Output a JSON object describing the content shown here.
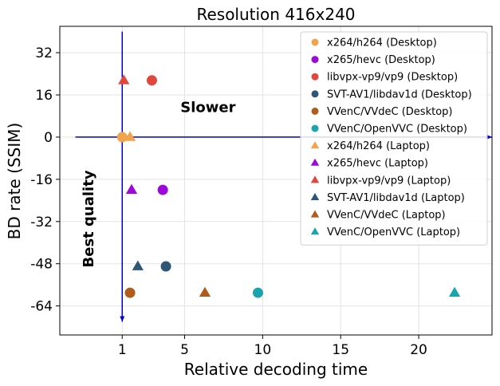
{
  "chart_data": {
    "type": "scatter",
    "title": "Resolution 416x240",
    "xlabel": "Relative decoding time",
    "ylabel": "BD rate (SSIM)",
    "xlim": [
      -3,
      24.7
    ],
    "ylim": [
      -75,
      42
    ],
    "xticks": [
      {
        "value": 1,
        "label": "1"
      },
      {
        "value": 5,
        "label": "5"
      },
      {
        "value": 10,
        "label": "10"
      },
      {
        "value": 15,
        "label": "15"
      },
      {
        "value": 20,
        "label": "20"
      }
    ],
    "yticks": [
      {
        "value": 32,
        "label": "32"
      },
      {
        "value": 16,
        "label": "16"
      },
      {
        "value": 0,
        "label": "0"
      },
      {
        "value": -16,
        "label": "-16"
      },
      {
        "value": -32,
        "label": "-32"
      },
      {
        "value": -48,
        "label": "-48"
      },
      {
        "value": -64,
        "label": "-64"
      }
    ],
    "grid": true,
    "legend_position": "upper-right",
    "annotations": [
      {
        "text": "Slower",
        "x": 6.5,
        "y": 9.5,
        "rotation": 0
      },
      {
        "text": "Best quality",
        "x": -0.85,
        "y": -31,
        "rotation": -90
      }
    ],
    "reference_lines": [
      {
        "orientation": "horizontal",
        "y": 0,
        "from_x": -2.0,
        "to_x": 24.7,
        "color": "#0000cc"
      },
      {
        "orientation": "vertical",
        "x": 1,
        "from_y": 40,
        "to_y": -70,
        "color": "#0000cc"
      }
    ],
    "series": [
      {
        "name": "x264/h264 (Desktop)",
        "marker": "circle",
        "color": "#f0a44c",
        "points": [
          {
            "x": 1.0,
            "y": 0.0
          }
        ]
      },
      {
        "name": "x265/hevc (Desktop)",
        "marker": "circle",
        "color": "#9b0ad9",
        "points": [
          {
            "x": 3.6,
            "y": -20.0
          }
        ]
      },
      {
        "name": "libvpx-vp9/vp9 (Desktop)",
        "marker": "circle",
        "color": "#e0473d",
        "points": [
          {
            "x": 2.9,
            "y": 21.5
          }
        ]
      },
      {
        "name": "SVT-AV1/libdav1d (Desktop)",
        "marker": "circle",
        "color": "#2e5676",
        "points": [
          {
            "x": 3.8,
            "y": -49.0
          }
        ]
      },
      {
        "name": "VVenC/VVdeC (Desktop)",
        "marker": "circle",
        "color": "#b05c1c",
        "points": [
          {
            "x": 1.5,
            "y": -59.0
          }
        ]
      },
      {
        "name": "VVenC/OpenVVC (Desktop)",
        "marker": "circle",
        "color": "#1aa5ae",
        "points": [
          {
            "x": 9.7,
            "y": -59.0
          }
        ]
      },
      {
        "name": "x264/h264 (Laptop)",
        "marker": "triangle",
        "color": "#f0a44c",
        "points": [
          {
            "x": 1.5,
            "y": 0.0
          }
        ]
      },
      {
        "name": "x265/hevc (Laptop)",
        "marker": "triangle",
        "color": "#9b0ad9",
        "points": [
          {
            "x": 1.6,
            "y": -20.0
          }
        ]
      },
      {
        "name": "libvpx-vp9/vp9 (Laptop)",
        "marker": "triangle",
        "color": "#e0473d",
        "points": [
          {
            "x": 1.1,
            "y": 21.5
          }
        ]
      },
      {
        "name": "SVT-AV1/libdav1d (Laptop)",
        "marker": "triangle",
        "color": "#2e5676",
        "points": [
          {
            "x": 2.0,
            "y": -49.0
          }
        ]
      },
      {
        "name": "VVenC/VVdeC (Laptop)",
        "marker": "triangle",
        "color": "#b05c1c",
        "points": [
          {
            "x": 6.3,
            "y": -59.0
          }
        ]
      },
      {
        "name": "VVenC/OpenVVC (Laptop)",
        "marker": "triangle",
        "color": "#1aa5ae",
        "points": [
          {
            "x": 22.3,
            "y": -59.0
          }
        ]
      }
    ]
  }
}
